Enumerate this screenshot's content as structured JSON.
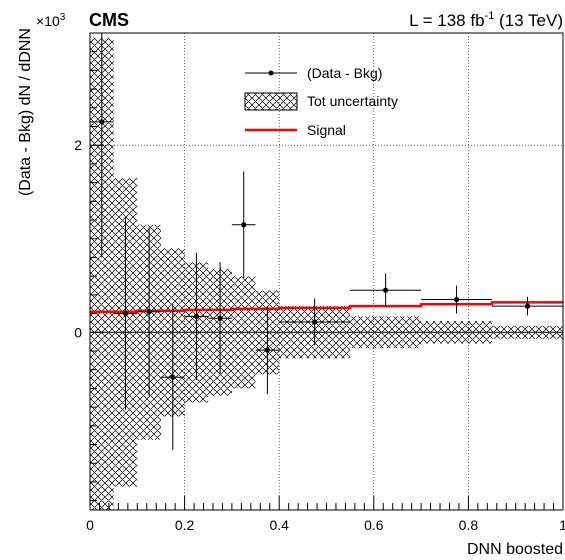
{
  "chart_data": {
    "type": "scatter",
    "experiment": "CMS",
    "lumi_label": "L = 138 fb",
    "lumi_exp": "-1",
    "energy_label": " (13 TeV)",
    "xlabel": "DNN boosted",
    "ylabel": "(Data - Bkg) dN / dDNN",
    "y_multiplier": "×10",
    "y_multiplier_exp": "3",
    "xlim": [
      0,
      1
    ],
    "ylim": [
      -1.9,
      3.2
    ],
    "x_ticks": [
      0,
      0.2,
      0.4,
      0.6,
      0.8,
      1
    ],
    "x_tick_labels": [
      "0",
      "0.2",
      "0.4",
      "0.6",
      "0.8",
      "1"
    ],
    "y_ticks": [
      0,
      2
    ],
    "y_tick_labels": [
      "0",
      "2"
    ],
    "grid": true,
    "legend_position": "top-center",
    "legend": [
      "(Data - Bkg)",
      "Tot uncertainty",
      "Signal"
    ],
    "series": [
      {
        "name": "(Data - Bkg)",
        "x": [
          0.025,
          0.075,
          0.125,
          0.175,
          0.225,
          0.275,
          0.325,
          0.375,
          0.475,
          0.625,
          0.775,
          0.925
        ],
        "y": [
          2.25,
          0.2,
          0.22,
          -0.48,
          0.17,
          0.15,
          1.15,
          -0.19,
          0.11,
          0.45,
          0.35,
          0.28
        ],
        "x_err": [
          0.025,
          0.025,
          0.025,
          0.025,
          0.025,
          0.025,
          0.025,
          0.025,
          0.075,
          0.075,
          0.075,
          0.075
        ],
        "y_err": [
          1.45,
          1.03,
          0.9,
          0.78,
          0.68,
          0.6,
          0.57,
          0.47,
          0.25,
          0.18,
          0.15,
          0.1
        ]
      },
      {
        "name": "Tot uncertainty",
        "bin_edges": [
          0,
          0.05,
          0.1,
          0.15,
          0.2,
          0.25,
          0.3,
          0.35,
          0.4,
          0.55,
          0.7,
          0.85,
          1.0
        ],
        "values": [
          3.15,
          1.65,
          1.15,
          0.9,
          0.75,
          0.68,
          0.6,
          0.45,
          0.28,
          0.17,
          0.12,
          0.07
        ]
      },
      {
        "name": "Signal",
        "bin_edges": [
          0,
          0.05,
          0.1,
          0.15,
          0.2,
          0.25,
          0.3,
          0.35,
          0.4,
          0.55,
          0.7,
          0.85,
          1.0
        ],
        "values": [
          0.22,
          0.22,
          0.23,
          0.23,
          0.24,
          0.24,
          0.25,
          0.25,
          0.26,
          0.28,
          0.3,
          0.32
        ]
      }
    ],
    "colors": {
      "signal": "#ff0000",
      "data": "#000000",
      "hatch": "#000000",
      "grid": "#000000"
    }
  }
}
